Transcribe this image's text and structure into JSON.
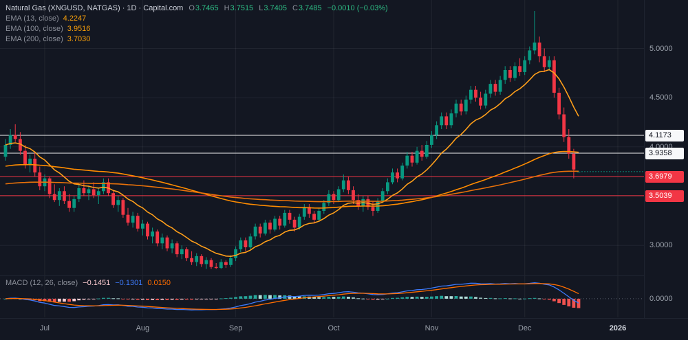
{
  "header": {
    "symbol_title": "Natural Gas (XNGUSD, NATGAS) · 1D · Capital.com",
    "ohlc": {
      "o_label": "O",
      "o": "3.7465",
      "h_label": "H",
      "h": "3.7515",
      "l_label": "L",
      "l": "3.7405",
      "c_label": "C",
      "c": "3.7485",
      "change": "−0.0010 (−0.03%)"
    }
  },
  "indicators": [
    {
      "label": "EMA (13, close)",
      "value": "4.2247"
    },
    {
      "label": "EMA (100, close)",
      "value": "3.9516"
    },
    {
      "label": "EMA (200, close)",
      "value": "3.7030"
    }
  ],
  "macd_legend": {
    "label": "MACD (12, 26, close)",
    "hist": "−0.1451",
    "macd": "−0.1301",
    "signal": "0.0150"
  },
  "price_axis": {
    "ticks": [
      {
        "label": "5.0000",
        "price": 5.0
      },
      {
        "label": "4.5000",
        "price": 4.5
      },
      {
        "label": "4.0000",
        "price": 4.0
      },
      {
        "label": "3.5000",
        "price": 3.5
      },
      {
        "label": "3.0000",
        "price": 3.0
      }
    ]
  },
  "macd_axis": {
    "zero_label": "0.0000"
  },
  "time_axis": {
    "ticks": [
      {
        "label": "Jul",
        "index": 8
      },
      {
        "label": "Aug",
        "index": 28
      },
      {
        "label": "Sep",
        "index": 47
      },
      {
        "label": "Oct",
        "index": 67
      },
      {
        "label": "Nov",
        "index": 87
      },
      {
        "label": "Dec",
        "index": 106
      },
      {
        "label": "2026",
        "index": 125,
        "year": true
      }
    ]
  },
  "colors": {
    "background": "#131722",
    "up": "#089981",
    "down": "#f23645",
    "grid": "rgba(255,255,255,0.06)",
    "axis_text": "#9aa0aa",
    "white_level": "#f2f2f2",
    "red_level": "#f23645",
    "value_green": "#2ebd85",
    "ema_value": "#f59e0b",
    "macd_line": "#3d7bfd",
    "signal_line": "#ff6d00",
    "hist_grow_pos": "#26a69a",
    "hist_fall_pos": "#b2dfdb",
    "hist_fall_neg": "#ef5350",
    "hist_grow_neg": "#ffcdd2"
  },
  "chart_data": {
    "type": "candlestick",
    "title": "Natural Gas (XNGUSD, NATGAS)",
    "interval": "1D",
    "source": "Capital.com",
    "ylim": [
      2.75,
      5.45
    ],
    "last_ohlc": {
      "open": 3.7465,
      "high": 3.7515,
      "low": 3.7405,
      "close": 3.7485,
      "change": -0.001,
      "change_pct": -0.03
    },
    "levels": [
      {
        "label": "4.1173",
        "price": 4.1173,
        "style": "white"
      },
      {
        "label": "3.9358",
        "price": 3.9358,
        "style": "white"
      },
      {
        "label": "3.6979",
        "price": 3.6979,
        "style": "red"
      },
      {
        "label": "3.5039",
        "price": 3.5039,
        "style": "red"
      }
    ],
    "overlays": [
      {
        "name": "EMA 13",
        "period": 13,
        "last": 4.2247,
        "color": "#ff9f1a",
        "seed": null
      },
      {
        "name": "EMA 100",
        "period": 100,
        "last": 3.9516,
        "color": "#ff8c00",
        "seed": 3.8
      },
      {
        "name": "EMA 200",
        "period": 200,
        "last": 3.703,
        "color": "#e8710a",
        "seed": 3.62
      }
    ],
    "macd": {
      "fast": 12,
      "slow": 26,
      "signal": 9,
      "last_hist": -0.1451,
      "last_macd": -0.1301,
      "last_signal": 0.015
    },
    "candles": [
      [
        3.9,
        4.08,
        3.86,
        4.02
      ],
      [
        4.02,
        4.18,
        3.98,
        4.12
      ],
      [
        4.12,
        4.23,
        4.05,
        4.08
      ],
      [
        4.08,
        4.15,
        3.92,
        3.96
      ],
      [
        3.96,
        4.02,
        3.78,
        3.82
      ],
      [
        3.82,
        3.92,
        3.74,
        3.88
      ],
      [
        3.88,
        3.95,
        3.7,
        3.74
      ],
      [
        3.74,
        3.8,
        3.56,
        3.6
      ],
      [
        3.6,
        3.72,
        3.55,
        3.68
      ],
      [
        3.68,
        3.7,
        3.48,
        3.52
      ],
      [
        3.52,
        3.62,
        3.44,
        3.46
      ],
      [
        3.46,
        3.58,
        3.4,
        3.55
      ],
      [
        3.55,
        3.6,
        3.42,
        3.45
      ],
      [
        3.45,
        3.52,
        3.34,
        3.38
      ],
      [
        3.38,
        3.5,
        3.34,
        3.47
      ],
      [
        3.47,
        3.62,
        3.44,
        3.58
      ],
      [
        3.58,
        3.66,
        3.5,
        3.53
      ],
      [
        3.53,
        3.6,
        3.46,
        3.57
      ],
      [
        3.57,
        3.64,
        3.48,
        3.51
      ],
      [
        3.51,
        3.58,
        3.42,
        3.55
      ],
      [
        3.55,
        3.68,
        3.52,
        3.64
      ],
      [
        3.64,
        3.68,
        3.5,
        3.53
      ],
      [
        3.53,
        3.56,
        3.38,
        3.41
      ],
      [
        3.41,
        3.5,
        3.34,
        3.46
      ],
      [
        3.46,
        3.48,
        3.28,
        3.31
      ],
      [
        3.31,
        3.38,
        3.2,
        3.23
      ],
      [
        3.23,
        3.34,
        3.18,
        3.3
      ],
      [
        3.3,
        3.33,
        3.14,
        3.17
      ],
      [
        3.17,
        3.26,
        3.1,
        3.22
      ],
      [
        3.22,
        3.24,
        3.06,
        3.09
      ],
      [
        3.09,
        3.18,
        3.02,
        3.14
      ],
      [
        3.14,
        3.16,
        2.99,
        3.02
      ],
      [
        3.02,
        3.12,
        2.96,
        3.08
      ],
      [
        3.08,
        3.1,
        2.94,
        2.97
      ],
      [
        2.97,
        3.06,
        2.92,
        3.02
      ],
      [
        3.02,
        3.04,
        2.88,
        2.91
      ],
      [
        2.91,
        3.0,
        2.86,
        2.96
      ],
      [
        2.96,
        2.98,
        2.84,
        2.87
      ],
      [
        2.87,
        2.94,
        2.8,
        2.83
      ],
      [
        2.83,
        2.92,
        2.79,
        2.89
      ],
      [
        2.89,
        2.91,
        2.78,
        2.81
      ],
      [
        2.81,
        2.88,
        2.76,
        2.85
      ],
      [
        2.85,
        2.87,
        2.76,
        2.78
      ],
      [
        2.78,
        2.82,
        2.76,
        2.77
      ],
      [
        2.77,
        2.86,
        2.76,
        2.83
      ],
      [
        2.83,
        2.85,
        2.77,
        2.8
      ],
      [
        2.8,
        2.9,
        2.78,
        2.87
      ],
      [
        2.87,
        2.99,
        2.84,
        2.96
      ],
      [
        2.96,
        3.08,
        2.93,
        3.05
      ],
      [
        3.05,
        3.08,
        2.94,
        2.98
      ],
      [
        2.98,
        3.12,
        2.96,
        3.09
      ],
      [
        3.09,
        3.22,
        3.06,
        3.19
      ],
      [
        3.19,
        3.22,
        3.08,
        3.12
      ],
      [
        3.12,
        3.26,
        3.1,
        3.23
      ],
      [
        3.23,
        3.26,
        3.12,
        3.16
      ],
      [
        3.16,
        3.3,
        3.14,
        3.27
      ],
      [
        3.27,
        3.3,
        3.16,
        3.2
      ],
      [
        3.2,
        3.36,
        3.18,
        3.33
      ],
      [
        3.33,
        3.36,
        3.22,
        3.26
      ],
      [
        3.26,
        3.29,
        3.14,
        3.18
      ],
      [
        3.18,
        3.32,
        3.16,
        3.29
      ],
      [
        3.29,
        3.42,
        3.26,
        3.39
      ],
      [
        3.39,
        3.42,
        3.28,
        3.32
      ],
      [
        3.32,
        3.35,
        3.22,
        3.26
      ],
      [
        3.26,
        3.38,
        3.24,
        3.35
      ],
      [
        3.35,
        3.46,
        3.32,
        3.43
      ],
      [
        3.43,
        3.56,
        3.4,
        3.52
      ],
      [
        3.52,
        3.55,
        3.42,
        3.46
      ],
      [
        3.46,
        3.6,
        3.44,
        3.57
      ],
      [
        3.57,
        3.72,
        3.54,
        3.66
      ],
      [
        3.66,
        3.7,
        3.52,
        3.56
      ],
      [
        3.56,
        3.6,
        3.42,
        3.46
      ],
      [
        3.46,
        3.52,
        3.36,
        3.4
      ],
      [
        3.4,
        3.5,
        3.34,
        3.47
      ],
      [
        3.47,
        3.5,
        3.36,
        3.39
      ],
      [
        3.39,
        3.44,
        3.3,
        3.35
      ],
      [
        3.35,
        3.48,
        3.33,
        3.45
      ],
      [
        3.45,
        3.58,
        3.43,
        3.55
      ],
      [
        3.55,
        3.68,
        3.52,
        3.64
      ],
      [
        3.64,
        3.78,
        3.62,
        3.74
      ],
      [
        3.74,
        3.78,
        3.64,
        3.68
      ],
      [
        3.68,
        3.84,
        3.66,
        3.81
      ],
      [
        3.81,
        3.95,
        3.78,
        3.91
      ],
      [
        3.91,
        3.95,
        3.8,
        3.84
      ],
      [
        3.84,
        4.0,
        3.82,
        3.96
      ],
      [
        3.96,
        4.02,
        3.86,
        3.9
      ],
      [
        3.9,
        4.06,
        3.88,
        4.02
      ],
      [
        4.02,
        4.16,
        3.99,
        4.12
      ],
      [
        4.12,
        4.26,
        4.08,
        4.22
      ],
      [
        4.22,
        4.35,
        4.18,
        4.31
      ],
      [
        4.31,
        4.35,
        4.18,
        4.22
      ],
      [
        4.22,
        4.38,
        4.19,
        4.34
      ],
      [
        4.34,
        4.48,
        4.3,
        4.44
      ],
      [
        4.44,
        4.48,
        4.32,
        4.36
      ],
      [
        4.36,
        4.52,
        4.33,
        4.48
      ],
      [
        4.48,
        4.62,
        4.44,
        4.58
      ],
      [
        4.58,
        4.62,
        4.46,
        4.5
      ],
      [
        4.5,
        4.56,
        4.38,
        4.42
      ],
      [
        4.42,
        4.58,
        4.39,
        4.54
      ],
      [
        4.54,
        4.68,
        4.5,
        4.64
      ],
      [
        4.64,
        4.68,
        4.52,
        4.56
      ],
      [
        4.56,
        4.72,
        4.53,
        4.68
      ],
      [
        4.68,
        4.82,
        4.64,
        4.78
      ],
      [
        4.78,
        4.82,
        4.66,
        4.7
      ],
      [
        4.7,
        4.86,
        4.67,
        4.82
      ],
      [
        4.82,
        4.9,
        4.72,
        4.76
      ],
      [
        4.76,
        4.92,
        4.73,
        4.88
      ],
      [
        4.88,
        5.02,
        4.84,
        4.98
      ],
      [
        4.98,
        5.38,
        4.94,
        5.06
      ],
      [
        5.06,
        5.12,
        4.86,
        4.92
      ],
      [
        4.92,
        5.0,
        4.76,
        4.81
      ],
      [
        4.81,
        4.92,
        4.78,
        4.88
      ],
      [
        4.88,
        4.92,
        4.5,
        4.55
      ],
      [
        4.55,
        4.6,
        4.28,
        4.33
      ],
      [
        4.33,
        4.4,
        4.05,
        4.1
      ],
      [
        4.1,
        4.18,
        3.88,
        3.93
      ],
      [
        3.93,
        3.98,
        3.68,
        3.77
      ],
      [
        3.7465,
        3.7515,
        3.7405,
        3.7485
      ]
    ]
  }
}
